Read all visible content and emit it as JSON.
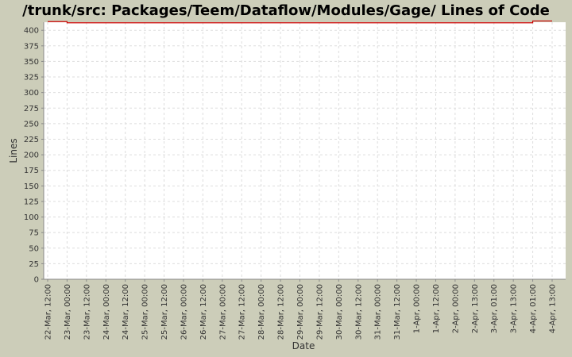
{
  "chart_data": {
    "type": "line",
    "title": "/trunk/src: Packages/Teem/Dataflow/Modules/Gage/ Lines of Code",
    "x_label": "Date",
    "y_label": "Lines",
    "categories": [
      "22-Mar, 12:00",
      "23-Mar, 00:00",
      "23-Mar, 12:00",
      "24-Mar, 00:00",
      "24-Mar, 12:00",
      "25-Mar, 00:00",
      "25-Mar, 12:00",
      "26-Mar, 00:00",
      "26-Mar, 12:00",
      "27-Mar, 00:00",
      "27-Mar, 12:00",
      "28-Mar, 00:00",
      "28-Mar, 12:00",
      "29-Mar, 00:00",
      "29-Mar, 12:00",
      "30-Mar, 00:00",
      "30-Mar, 12:00",
      "31-Mar, 00:00",
      "31-Mar, 12:00",
      "1-Apr, 00:00",
      "1-Apr, 12:00",
      "2-Apr, 00:00",
      "2-Apr, 13:00",
      "3-Apr, 01:00",
      "3-Apr, 13:00",
      "4-Apr, 01:00",
      "4-Apr, 13:00"
    ],
    "series": [
      {
        "name": "Lines",
        "color": "#cc0000",
        "values": [
          414,
          412,
          412,
          412,
          412,
          412,
          412,
          412,
          412,
          412,
          412,
          412,
          412,
          412,
          412,
          412,
          412,
          412,
          412,
          412,
          412,
          412,
          412,
          412,
          412,
          415,
          415
        ]
      }
    ],
    "ylim": [
      0,
      413
    ],
    "yticks": [
      0,
      25,
      50,
      75,
      100,
      125,
      150,
      175,
      200,
      225,
      250,
      275,
      300,
      325,
      350,
      375,
      400
    ],
    "grid": true,
    "step": true
  }
}
